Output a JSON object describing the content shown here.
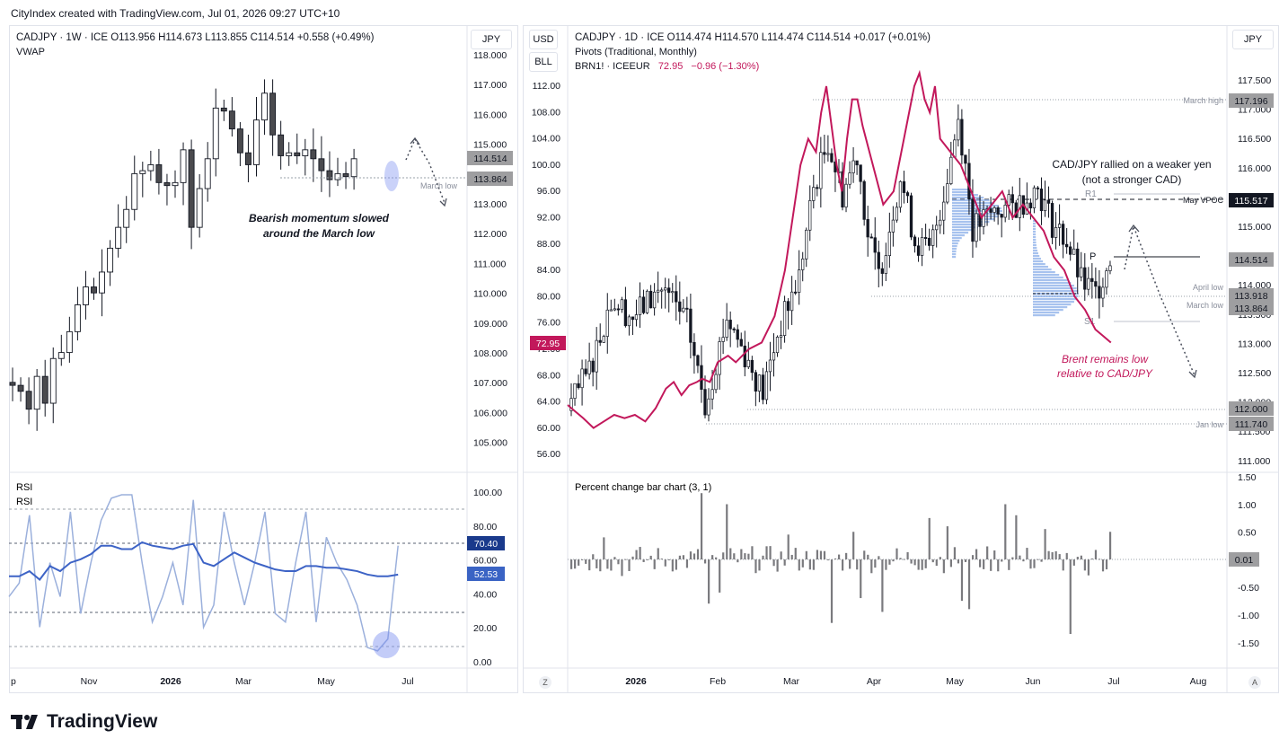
{
  "header": {
    "text": "CityIndex created with TradingView.com, Jul 01, 2026 09:27 UTC+10"
  },
  "footer": {
    "brand": "TradingView"
  },
  "left": {
    "title": "CADJPY · 1W · ICE   O113.956   H114.673   L113.855   C114.514   +0.558 (+0.49%)",
    "indicator": "VWAP",
    "currency_button": "JPY",
    "y_ticks": [
      "118.000",
      "117.000",
      "116.000",
      "115.000",
      "114.000",
      "113.000",
      "112.000",
      "111.000",
      "110.000",
      "109.000",
      "108.000",
      "107.000",
      "106.000",
      "105.000"
    ],
    "price_tags": [
      {
        "text": "114.514",
        "bg": "#9e9ea0",
        "fg": "#131722"
      },
      {
        "text": "113.864",
        "bg": "#9e9ea0",
        "fg": "#131722"
      }
    ],
    "note": [
      "Bearish momentum slowed",
      "around the March low"
    ],
    "march_low_label": "March low",
    "rsi": {
      "label1": "RSI",
      "label2": "RSI",
      "y_ticks": [
        "100.00",
        "80.00",
        "60.00",
        "40.00",
        "20.00",
        "0.00"
      ],
      "tags": [
        {
          "text": "70.40",
          "bg": "#1a3a8c",
          "fg": "#ffffff"
        },
        {
          "text": "52.53",
          "bg": "#3a63c4",
          "fg": "#ffffff"
        }
      ]
    },
    "x_ticks": [
      "p",
      "Nov",
      "2026",
      "Mar",
      "May",
      "Jul"
    ]
  },
  "right": {
    "title": "CADJPY · 1D · ICE   O114.474   H114.570   L114.474   C114.514   +0.017 (+0.01%)",
    "indicator": "Pivots (Traditional, Monthly)",
    "overlay": {
      "name": "BRN1! · ICEEUR",
      "value": "72.95",
      "change": "−0.96 (−1.30%)"
    },
    "left_buttons": [
      "USD",
      "BLL"
    ],
    "right_button": "JPY",
    "y_ticks_left": [
      "112.00",
      "108.00",
      "104.00",
      "100.00",
      "96.00",
      "92.00",
      "88.00",
      "84.00",
      "80.00",
      "76.00",
      "72.00",
      "68.00",
      "64.00",
      "60.00",
      "56.00"
    ],
    "y_ticks_right": [
      "117.500",
      "117.000",
      "116.500",
      "116.000",
      "115.500",
      "115.000",
      "114.500",
      "114.000",
      "113.500",
      "113.000",
      "112.500",
      "112.000",
      "111.500",
      "111.000"
    ],
    "brent_tag": "72.95",
    "price_tags": [
      {
        "text": "117.196",
        "bg": "#9e9ea0",
        "fg": "#131722"
      },
      {
        "text": "115.517",
        "bg": "#131722",
        "fg": "#ffffff"
      },
      {
        "text": "114.514",
        "bg": "#9e9ea0",
        "fg": "#131722"
      },
      {
        "text": "113.918",
        "bg": "#9e9ea0",
        "fg": "#131722"
      },
      {
        "text": "113.864",
        "bg": "#9e9ea0",
        "fg": "#131722"
      },
      {
        "text": "112.000",
        "bg": "#9e9ea0",
        "fg": "#131722"
      },
      {
        "text": "111.740",
        "bg": "#9e9ea0",
        "fg": "#131722"
      }
    ],
    "level_labels": {
      "march_high": "March high",
      "may_vpoc": "May VPOC",
      "april_low": "April low",
      "march_low": "March low",
      "jan_low": "Jan low",
      "r1": "R1",
      "p": "P",
      "s1": "S1"
    },
    "note_top": [
      "CAD/JPY rallied on a weaker yen",
      "(not a stronger CAD)"
    ],
    "note_red": [
      "Brent remains low",
      "relative to CAD/JPY"
    ],
    "pct": {
      "label": "Percent change bar chart (3, 1)",
      "y_ticks": [
        "1.50",
        "1.00",
        "0.50",
        "0.00",
        "-0.50",
        "-1.00",
        "-1.50"
      ],
      "tag": "0.01"
    },
    "x_ticks": [
      "2026",
      "Feb",
      "Mar",
      "Apr",
      "May",
      "Jun",
      "Jul",
      "Aug"
    ],
    "corner_left": "Z",
    "corner_right": "A"
  }
}
